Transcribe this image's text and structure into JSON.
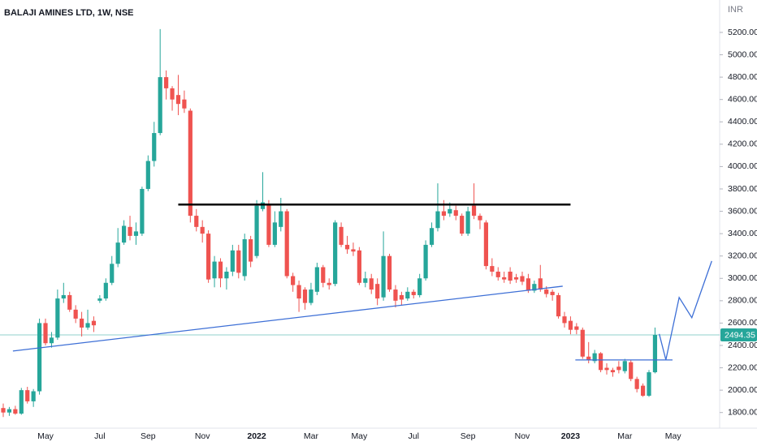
{
  "chart_data": {
    "type": "candlestick",
    "title": "BALAJI AMINES LTD, 1W, NSE",
    "currency": "INR",
    "up_color": "#26a69a",
    "down_color": "#ef5350",
    "grid": false,
    "ylim": [
      1660,
      5490
    ],
    "yticks": [
      {
        "value": 1800,
        "label": "1800.00"
      },
      {
        "value": 2000,
        "label": "2000.00"
      },
      {
        "value": 2200,
        "label": "2200.00"
      },
      {
        "value": 2400,
        "label": "2400.00"
      },
      {
        "value": 2600,
        "label": "2600.00"
      },
      {
        "value": 2800,
        "label": "2800.00"
      },
      {
        "value": 3000,
        "label": "3000.00"
      },
      {
        "value": 3200,
        "label": "3200.00"
      },
      {
        "value": 3400,
        "label": "3400.00"
      },
      {
        "value": 3600,
        "label": "3600.00"
      },
      {
        "value": 3800,
        "label": "3800.00"
      },
      {
        "value": 4000,
        "label": "4000.00"
      },
      {
        "value": 4200,
        "label": "4200.00"
      },
      {
        "value": 4400,
        "label": "4400.00"
      },
      {
        "value": 4600,
        "label": "4600.00"
      },
      {
        "value": 4800,
        "label": "4800.00"
      },
      {
        "value": 5000,
        "label": "5000.00"
      },
      {
        "value": 5200,
        "label": "5200.00"
      }
    ],
    "last_price": 2494.35,
    "last_price_color": "#26a69a",
    "categories": [
      null,
      null,
      null,
      null,
      null,
      null,
      null,
      "May",
      null,
      null,
      null,
      null,
      null,
      null,
      null,
      null,
      "Jul",
      null,
      null,
      null,
      null,
      null,
      null,
      null,
      "Sep",
      null,
      null,
      null,
      null,
      null,
      null,
      null,
      null,
      "Nov",
      null,
      null,
      null,
      null,
      null,
      null,
      null,
      null,
      "2022",
      null,
      null,
      null,
      null,
      null,
      null,
      null,
      null,
      "Mar",
      null,
      null,
      null,
      null,
      null,
      null,
      null,
      "May",
      null,
      null,
      null,
      null,
      null,
      null,
      null,
      null,
      "Jul",
      null,
      null,
      null,
      null,
      null,
      null,
      null,
      null,
      "Sep",
      null,
      null,
      null,
      null,
      null,
      null,
      null,
      null,
      "Nov",
      null,
      null,
      null,
      null,
      null,
      null,
      null,
      "2023",
      null,
      null,
      null,
      null,
      null,
      null,
      null,
      null,
      "Mar",
      null,
      null,
      null,
      null,
      null,
      null,
      null,
      "May",
      null,
      null,
      null,
      null,
      null,
      null
    ],
    "open": [
      1840,
      1800,
      1830,
      1790,
      2000,
      1900,
      1990,
      2600,
      2420,
      2470,
      2820,
      2850,
      2720,
      2640,
      2560,
      2620,
      2800,
      2820,
      2960,
      3130,
      3320,
      3460,
      3380,
      3400,
      3800,
      4050,
      4300,
      4800,
      4700,
      4640,
      4600,
      4500,
      3560,
      3460,
      3400,
      3000,
      3150,
      3000,
      3060,
      3250,
      3020,
      3350,
      3200,
      3620,
      3660,
      3300,
      3460,
      3600,
      3020,
      2940,
      2900,
      2780,
      2880,
      3100,
      2960,
      2950,
      3460,
      3300,
      3260,
      3250,
      2960,
      3000,
      2950,
      2830,
      3200,
      2900,
      2850,
      2820,
      2880,
      2850,
      3000,
      3300,
      3450,
      3600,
      3580,
      3610,
      3560,
      3400,
      3650,
      3560,
      3500,
      3110,
      3060,
      3010,
      3060,
      3010,
      3020,
      3000,
      2890,
      3000,
      2900,
      2880,
      2850,
      2660,
      2620,
      2570,
      2540,
      2300,
      2260,
      2330,
      2200,
      2180,
      2210,
      2170,
      2250,
      2100,
      2040,
      1950,
      2160,
      null,
      null,
      null,
      null,
      null,
      null,
      null,
      null,
      null
    ],
    "high": [
      1880,
      1850,
      1860,
      2020,
      2030,
      2010,
      2640,
      2640,
      2520,
      2900,
      2960,
      2880,
      2760,
      2700,
      2720,
      2660,
      2850,
      3000,
      3200,
      3450,
      3520,
      3560,
      3500,
      3820,
      4100,
      4400,
      5230,
      4860,
      4720,
      4820,
      4680,
      4520,
      3620,
      3520,
      3430,
      3200,
      3180,
      3100,
      3300,
      3300,
      3400,
      3380,
      3700,
      3950,
      3700,
      3600,
      3720,
      3620,
      3050,
      2980,
      2920,
      2960,
      3140,
      3120,
      3000,
      3520,
      3500,
      3380,
      3320,
      3280,
      3060,
      3040,
      3000,
      3420,
      3220,
      2940,
      2880,
      2920,
      2900,
      3040,
      3340,
      3500,
      3850,
      3700,
      3680,
      3650,
      3580,
      3640,
      3850,
      3580,
      3520,
      3180,
      3100,
      3060,
      3100,
      3040,
      3060,
      3040,
      2980,
      3120,
      2930,
      2900,
      2870,
      2700,
      2660,
      2600,
      2560,
      2430,
      2360,
      2340,
      2240,
      2200,
      2260,
      2280,
      2270,
      2120,
      2060,
      2180,
      2560,
      null,
      null,
      null,
      null,
      null,
      null,
      null,
      null,
      null
    ],
    "low": [
      1760,
      1770,
      1780,
      1780,
      1880,
      1850,
      1960,
      2400,
      2380,
      2450,
      2780,
      2700,
      2600,
      2480,
      2540,
      2520,
      2780,
      2800,
      2940,
      3100,
      3300,
      3340,
      3300,
      3380,
      3780,
      4000,
      4280,
      4600,
      4500,
      4460,
      4480,
      3500,
      3420,
      3320,
      2960,
      2920,
      2920,
      2900,
      3020,
      3000,
      2980,
      3100,
      3180,
      3600,
      3280,
      3280,
      3420,
      3000,
      2880,
      2700,
      2720,
      2760,
      2850,
      2920,
      2900,
      2930,
      3280,
      3220,
      3200,
      2940,
      2920,
      2860,
      2760,
      2800,
      2880,
      2740,
      2760,
      2800,
      2820,
      2830,
      2980,
      3280,
      3420,
      3520,
      3550,
      3520,
      3380,
      3380,
      3530,
      3440,
      3080,
      3020,
      2980,
      2960,
      2950,
      2960,
      2940,
      2870,
      2870,
      2880,
      2830,
      2800,
      2640,
      2560,
      2500,
      2500,
      2280,
      2240,
      2240,
      2160,
      2140,
      2120,
      2150,
      2150,
      2080,
      1980,
      1940,
      1940,
      2150,
      null,
      null,
      null,
      null,
      null,
      null,
      null,
      null,
      null
    ],
    "close": [
      1800,
      1830,
      1790,
      2000,
      1900,
      1990,
      2600,
      2420,
      2470,
      2820,
      2850,
      2720,
      2640,
      2560,
      2600,
      2580,
      2820,
      2960,
      3130,
      3320,
      3470,
      3380,
      3420,
      3800,
      4050,
      4300,
      4800,
      4700,
      4600,
      4560,
      4520,
      3560,
      3460,
      3400,
      2990,
      3150,
      3000,
      3060,
      3250,
      3050,
      3350,
      3150,
      3650,
      3680,
      3300,
      3500,
      3600,
      3020,
      2940,
      2820,
      2780,
      2900,
      3100,
      2960,
      2940,
      3500,
      3300,
      3260,
      3240,
      2960,
      3000,
      2900,
      2820,
      3200,
      2900,
      2800,
      2810,
      2880,
      2850,
      3000,
      3300,
      3450,
      3600,
      3560,
      3620,
      3560,
      3400,
      3600,
      3560,
      3520,
      3110,
      3060,
      3010,
      2990,
      2980,
      2990,
      2970,
      2890,
      2950,
      2900,
      2860,
      2850,
      2660,
      2600,
      2540,
      2540,
      2300,
      2270,
      2330,
      2180,
      2180,
      2160,
      2180,
      2260,
      2100,
      2010,
      1950,
      2160,
      2494.35,
      null,
      null,
      null,
      null,
      null,
      null,
      null,
      null,
      null
    ],
    "lines": [
      {
        "color": "#000000",
        "points": [
          [
            29,
            3660
          ],
          [
            94,
            3660
          ]
        ]
      },
      {
        "color": "#3d6fd6",
        "points": [
          [
            1.6,
            2350
          ],
          [
            92.7,
            2930
          ]
        ]
      },
      {
        "color": "#3d6fd6",
        "points": [
          [
            94.8,
            2270
          ],
          [
            110.9,
            2270
          ]
        ]
      },
      {
        "color": "#3d6fd6",
        "points": [
          [
            108.7,
            2503
          ],
          [
            109.8,
            2271
          ],
          [
            112,
            2829
          ],
          [
            114.1,
            2648
          ],
          [
            117.4,
            3155
          ]
        ]
      }
    ]
  }
}
